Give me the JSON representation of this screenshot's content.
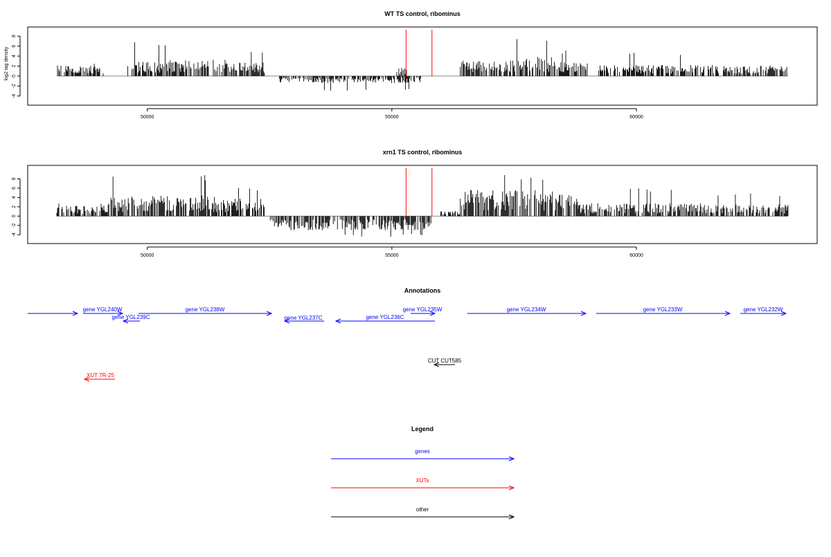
{
  "chart_data": [
    {
      "type": "bar",
      "title": "WT TS control, ribominus",
      "xlabel": "",
      "ylabel": "log2 tag density",
      "xlim": [
        48000,
        63400
      ],
      "ylim": [
        -5,
        9
      ],
      "xticks": [
        50000,
        55000,
        60000
      ],
      "yticks": [
        -4,
        -2,
        0,
        2,
        4,
        6,
        8
      ],
      "bar_color": "#000000",
      "marker_color": "#ff0000",
      "markers_x": [
        55290,
        55820
      ],
      "profile": [
        {
          "from": 48150,
          "to": 49100,
          "level": 1.5,
          "peak": 2.5
        },
        {
          "from": 49600,
          "to": 50400,
          "level": 2.2,
          "peak": 7.0
        },
        {
          "from": 50400,
          "to": 51800,
          "level": 2.4,
          "peak": 5.4
        },
        {
          "from": 51800,
          "to": 52400,
          "level": 2.0,
          "peak": 5.0
        },
        {
          "from": 52700,
          "to": 55600,
          "level": -1.0,
          "peak": -3.0
        },
        {
          "from": 55100,
          "to": 55300,
          "level": 1.2,
          "peak": 3.5
        },
        {
          "from": 56400,
          "to": 57400,
          "level": 2.2,
          "peak": 5.5
        },
        {
          "from": 57400,
          "to": 58400,
          "level": 2.8,
          "peak": 7.5
        },
        {
          "from": 58400,
          "to": 59000,
          "level": 2.0,
          "peak": 5.2
        },
        {
          "from": 59200,
          "to": 61800,
          "level": 1.6,
          "peak": 5.0
        },
        {
          "from": 61800,
          "to": 63100,
          "level": 1.5,
          "peak": 4.5
        }
      ]
    },
    {
      "type": "bar",
      "title": "xrn1 TS control, ribominus",
      "xlabel": "",
      "ylabel": "",
      "xlim": [
        48000,
        63400
      ],
      "ylim": [
        -5,
        10
      ],
      "xticks": [
        50000,
        55000,
        60000
      ],
      "yticks": [
        -4,
        -2,
        0,
        2,
        4,
        6,
        8
      ],
      "bar_color": "#000000",
      "marker_color": "#ff0000",
      "markers_x": [
        55290,
        55820
      ],
      "profile": [
        {
          "from": 48150,
          "to": 49200,
          "level": 1.6,
          "peak": 3.0
        },
        {
          "from": 49200,
          "to": 50000,
          "level": 3.0,
          "peak": 8.5
        },
        {
          "from": 50000,
          "to": 51400,
          "level": 3.2,
          "peak": 8.8
        },
        {
          "from": 51400,
          "to": 52400,
          "level": 2.8,
          "peak": 6.2
        },
        {
          "from": 52500,
          "to": 55800,
          "level": -2.2,
          "peak": -4.5
        },
        {
          "from": 56000,
          "to": 56400,
          "level": 0.8,
          "peak": 2.0
        },
        {
          "from": 56400,
          "to": 58800,
          "level": 4.0,
          "peak": 9.0
        },
        {
          "from": 58800,
          "to": 61400,
          "level": 2.0,
          "peak": 6.0
        },
        {
          "from": 61400,
          "to": 63100,
          "level": 1.8,
          "peak": 5.0
        }
      ]
    }
  ],
  "annotations": {
    "title": "Annotations",
    "genes": [
      {
        "label": "gene YGL240W",
        "strand": "+",
        "color": "#0000ff"
      },
      {
        "label": "gene YGL239C",
        "strand": "-",
        "color": "#0000ff"
      },
      {
        "label": "gene YGL238W",
        "strand": "+",
        "color": "#0000ff"
      },
      {
        "label": "gene YGL237C",
        "strand": "-",
        "color": "#0000ff"
      },
      {
        "label": "gene YGL236C",
        "strand": "-",
        "color": "#0000ff"
      },
      {
        "label": "gene YGL235W",
        "strand": "+",
        "color": "#0000ff"
      },
      {
        "label": "gene YGL234W",
        "strand": "+",
        "color": "#0000ff"
      },
      {
        "label": "gene YGL233W",
        "strand": "+",
        "color": "#0000ff"
      },
      {
        "label": "gene YGL232W",
        "strand": "+",
        "color": "#0000ff"
      }
    ],
    "other": [
      {
        "label": "CUT CUT585",
        "strand": "-",
        "color": "#000000"
      }
    ],
    "xuts": [
      {
        "label": "XUT 7R-25",
        "strand": "-",
        "color": "#ff0000"
      }
    ]
  },
  "legend": {
    "title": "Legend",
    "items": [
      {
        "label": "genes",
        "color": "#0000ff"
      },
      {
        "label": "XUTs",
        "color": "#ff0000"
      },
      {
        "label": "other",
        "color": "#000000"
      }
    ]
  }
}
